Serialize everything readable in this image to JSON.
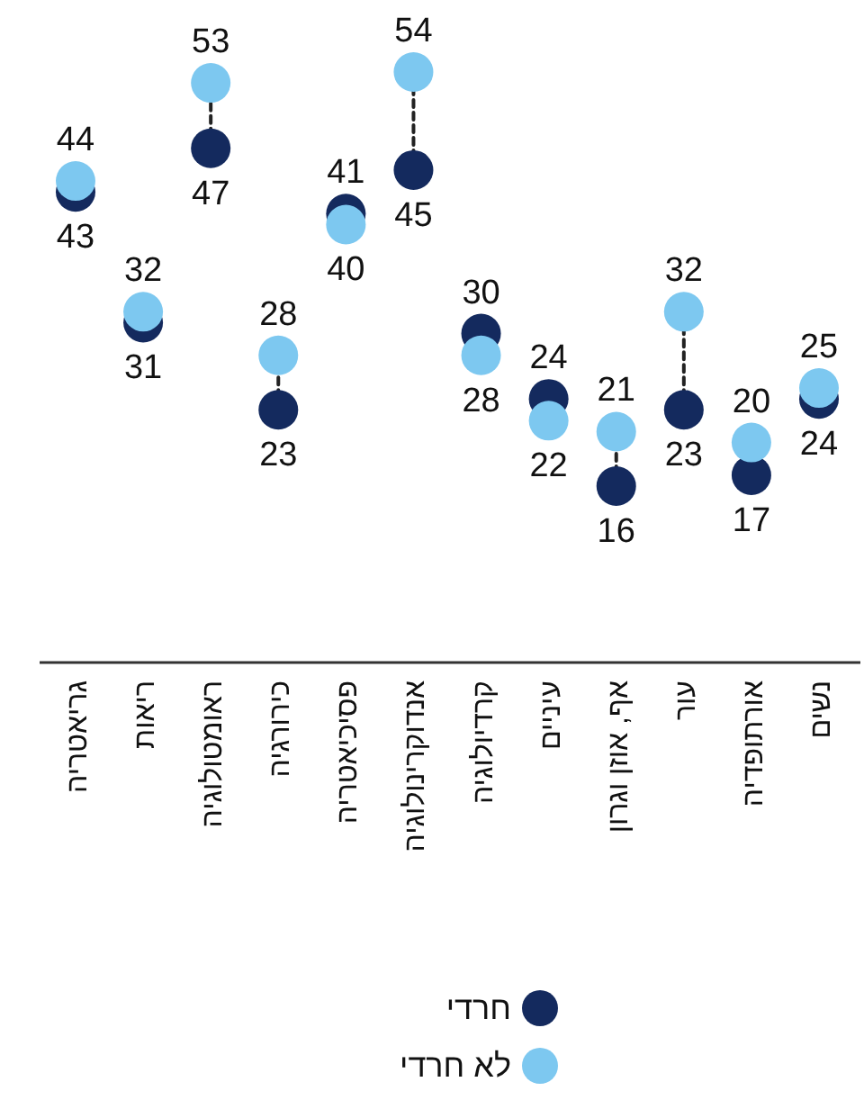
{
  "chart_data": {
    "type": "scatter",
    "categories": [
      "גריאטריה",
      "ריאות",
      "ראומטולוגיה",
      "כירורגיה",
      "פסיכיאטריה",
      "אנדוקרינולוגיה",
      "קרדיולוגיה",
      "עיניים",
      "אף, אוזן וגרון",
      "עור",
      "אורתופדיה",
      "נשים"
    ],
    "series": [
      {
        "name": "חרדי",
        "color": "#142a5e",
        "values": [
          43,
          31,
          47,
          23,
          41,
          45,
          30,
          24,
          16,
          23,
          17,
          24
        ]
      },
      {
        "name": "לא חרדי",
        "color": "#7dc8f0",
        "values": [
          44,
          32,
          53,
          28,
          40,
          54,
          28,
          22,
          21,
          32,
          20,
          25
        ]
      }
    ],
    "data_labels": true,
    "marker": "circle",
    "line_style": "dashed",
    "legend": "bottom"
  }
}
